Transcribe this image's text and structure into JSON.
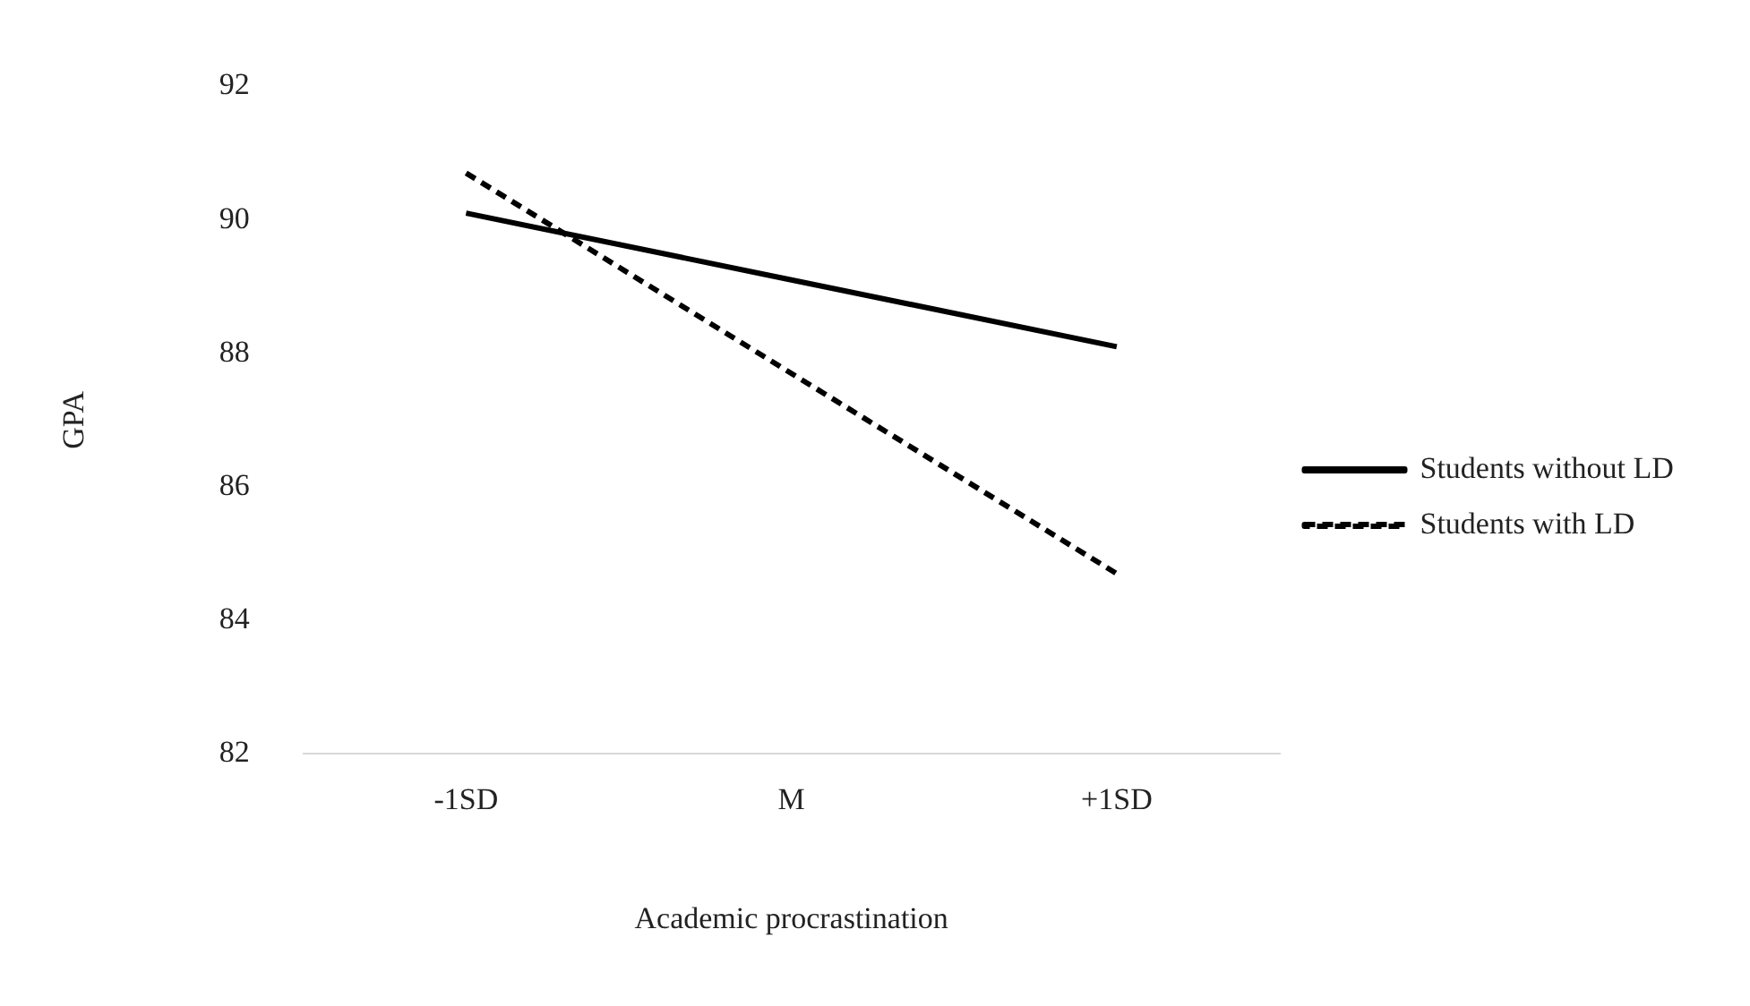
{
  "chart_data": {
    "type": "line",
    "xlabel": "Academic procrastination",
    "ylabel": "GPA",
    "categories": [
      "-1SD",
      "M",
      "+1SD"
    ],
    "series": [
      {
        "name": "Students without LD",
        "color": "#000000",
        "values": [
          90.1,
          89.1,
          88.1
        ],
        "line_style": "solid"
      },
      {
        "name": "Students with LD",
        "color": "#000000",
        "values": [
          90.7,
          87.7,
          84.7
        ],
        "line_style": "dashed"
      }
    ],
    "ylim": [
      82,
      92
    ],
    "yticks": [
      82,
      84,
      86,
      88,
      90,
      92
    ],
    "grid": false,
    "legend": "right",
    "marker": "none"
  }
}
